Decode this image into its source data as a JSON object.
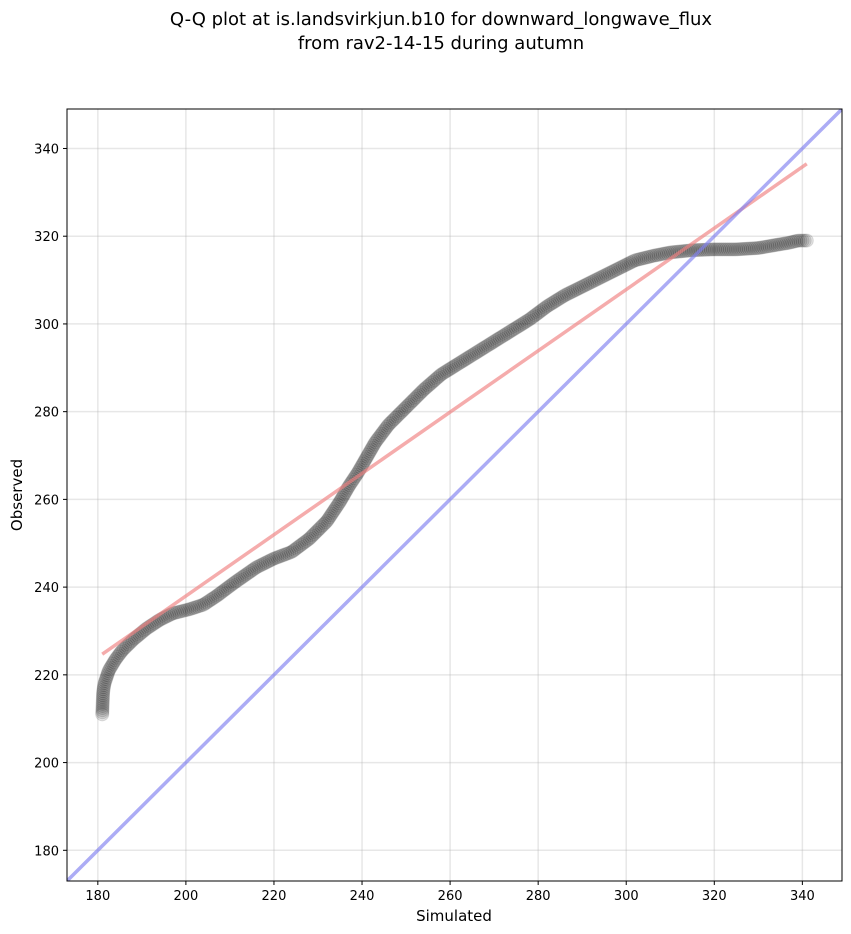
{
  "chart_data": {
    "type": "scatter",
    "title_lines": [
      "Q-Q plot at is.landsvirkjun.b10 for downward_longwave_flux",
      "from rav2-14-15 during autumn"
    ],
    "xlabel": "Simulated",
    "ylabel": "Observed",
    "xlim": [
      173,
      349
    ],
    "ylim": [
      173,
      349
    ],
    "xticks": [
      180,
      200,
      220,
      240,
      260,
      280,
      300,
      320,
      340
    ],
    "yticks": [
      180,
      200,
      220,
      240,
      260,
      280,
      300,
      320,
      340
    ],
    "grid": true,
    "points_color": "#000000",
    "fit_line": {
      "color": "#f08080",
      "x": [
        181,
        341
      ],
      "y": [
        224.7,
        336.5
      ]
    },
    "identity_line": {
      "color": "#8080f0",
      "x": [
        173,
        349
      ],
      "y": [
        173,
        349
      ]
    },
    "quantile_knots": [
      [
        181,
        211
      ],
      [
        181.2,
        216
      ],
      [
        181.5,
        218
      ],
      [
        182.5,
        221
      ],
      [
        184,
        223.5
      ],
      [
        185.5,
        225.5
      ],
      [
        188,
        228
      ],
      [
        191,
        230.5
      ],
      [
        194,
        232.5
      ],
      [
        197,
        234
      ],
      [
        201,
        235
      ],
      [
        204,
        236
      ],
      [
        207,
        238
      ],
      [
        211,
        241
      ],
      [
        216,
        244.5
      ],
      [
        220,
        246.5
      ],
      [
        224,
        248
      ],
      [
        228,
        251
      ],
      [
        232,
        255
      ],
      [
        235,
        259.5
      ],
      [
        237,
        263
      ],
      [
        239,
        266
      ],
      [
        241,
        269.5
      ],
      [
        243,
        273
      ],
      [
        246,
        277
      ],
      [
        250,
        281
      ],
      [
        254,
        285
      ],
      [
        258,
        288.5
      ],
      [
        262,
        291
      ],
      [
        266,
        293.5
      ],
      [
        270,
        296
      ],
      [
        274,
        298.5
      ],
      [
        278,
        301
      ],
      [
        282,
        304
      ],
      [
        286,
        306.5
      ],
      [
        290,
        308.5
      ],
      [
        294,
        310.5
      ],
      [
        298,
        312.5
      ],
      [
        302,
        314.5
      ],
      [
        306,
        315.5
      ],
      [
        310,
        316.3
      ],
      [
        315,
        316.8
      ],
      [
        320,
        317
      ],
      [
        325,
        317
      ],
      [
        330,
        317.3
      ],
      [
        334,
        318
      ],
      [
        337,
        318.5
      ],
      [
        339,
        319
      ],
      [
        341,
        319
      ]
    ],
    "n_points": 430
  }
}
